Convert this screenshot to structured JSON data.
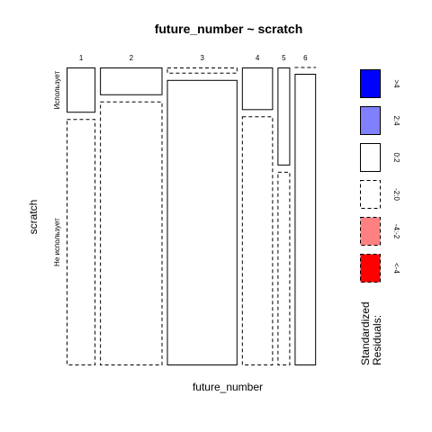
{
  "chart_data": {
    "type": "mosaic",
    "title": "future_number ~ scratch",
    "xlabel": "future_number",
    "ylabel": "scratch",
    "categories": [
      "1",
      "2",
      "3",
      "4",
      "5",
      "6"
    ],
    "rows": [
      "Использует",
      "Не использует"
    ],
    "column_proportions": [
      0.119,
      0.257,
      0.29,
      0.128,
      0.052,
      0.088
    ],
    "row_proportions": [
      [
        0.155,
        0.845
      ],
      [
        0.095,
        0.905
      ],
      [
        0.021,
        0.979
      ],
      [
        0.146,
        0.854
      ],
      [
        0.336,
        0.664
      ],
      [
        0.0,
        1.0
      ]
    ],
    "residual_styles": [
      [
        "0:2",
        "-2:0"
      ],
      [
        "0:2",
        "-2:0"
      ],
      [
        "-2:0",
        "0:2"
      ],
      [
        "0:2",
        "-2:0"
      ],
      [
        "0:2",
        "-2:0"
      ],
      [
        "-2:0",
        "0:2"
      ]
    ],
    "legend": {
      "title": "Standardized\nResiduals:",
      "entries": [
        {
          "label": ">4",
          "fill": "#0000ff",
          "dashed": false
        },
        {
          "label": "2:4",
          "fill": "#8080ff",
          "dashed": false
        },
        {
          "label": "0:2",
          "fill": "#ffffff",
          "dashed": false
        },
        {
          "label": "-2:0",
          "fill": "#ffffff",
          "dashed": true
        },
        {
          "label": "-4:-2",
          "fill": "#ff8080",
          "dashed": true
        },
        {
          "label": "<-4",
          "fill": "#ff0000",
          "dashed": true
        }
      ]
    }
  }
}
